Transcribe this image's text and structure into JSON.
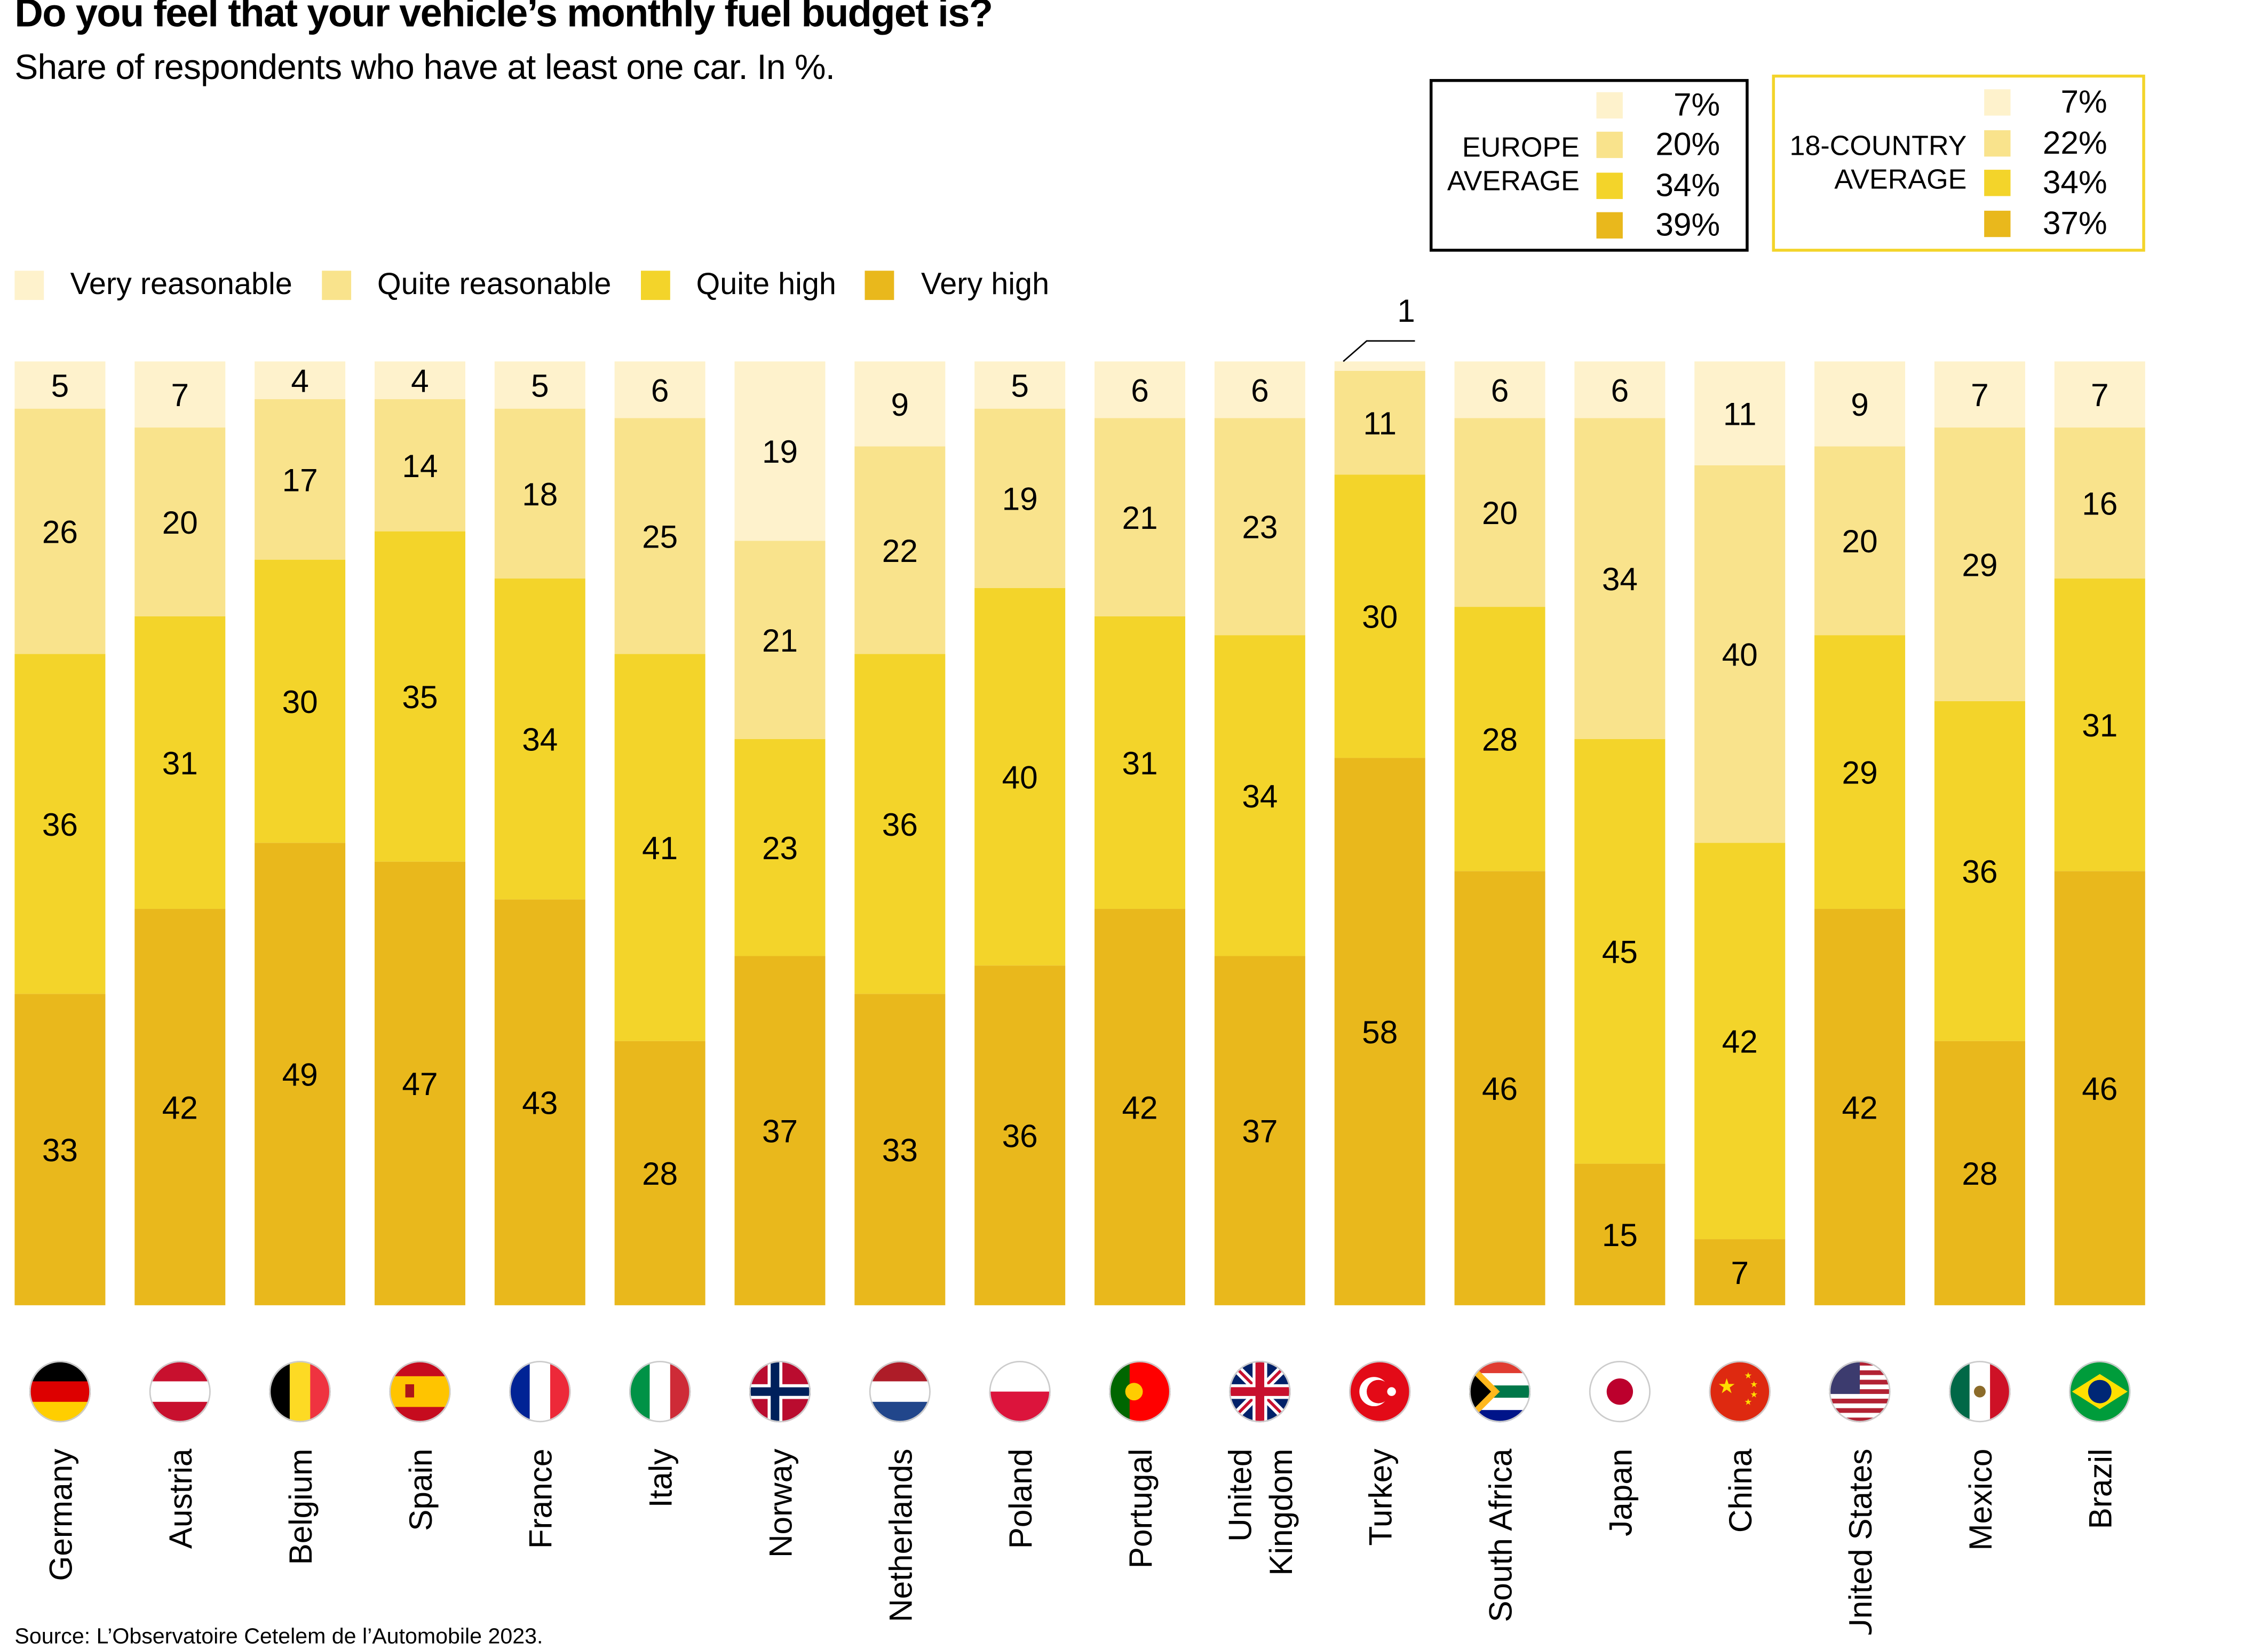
{
  "chart_data": {
    "type": "bar",
    "stacked": true,
    "orientation": "vertical",
    "title": "Do you feel that your vehicle’s monthly fuel budget is?",
    "subtitle": "Share of respondents who have at least one car. In %.",
    "source": "Source: L’Observatoire Cetelem de l’Automobile 2023.",
    "ylim": [
      0,
      100
    ],
    "grid": false,
    "legend_position": "top-left",
    "categories": [
      "Germany",
      "Austria",
      "Belgium",
      "Spain",
      "France",
      "Italy",
      "Norway",
      "Netherlands",
      "Poland",
      "Portugal",
      "United Kingdom",
      "Turkey",
      "South Africa",
      "Japan",
      "China",
      "United States",
      "Mexico",
      "Brazil"
    ],
    "series": [
      {
        "name": "Very reasonable",
        "color": "#FEF2CC",
        "values": [
          5,
          7,
          4,
          4,
          5,
          6,
          19,
          9,
          5,
          6,
          6,
          1,
          6,
          6,
          11,
          9,
          7,
          7
        ]
      },
      {
        "name": "Quite reasonable",
        "color": "#F9E38C",
        "values": [
          26,
          20,
          17,
          14,
          18,
          25,
          21,
          22,
          19,
          21,
          23,
          11,
          20,
          34,
          40,
          20,
          29,
          16
        ]
      },
      {
        "name": "Quite high",
        "color": "#F3D42A",
        "values": [
          36,
          31,
          30,
          35,
          34,
          41,
          23,
          36,
          40,
          31,
          34,
          30,
          28,
          45,
          42,
          29,
          36,
          31
        ]
      },
      {
        "name": "Very high",
        "color": "#E9B81C",
        "values": [
          33,
          42,
          49,
          47,
          43,
          28,
          37,
          33,
          36,
          42,
          37,
          58,
          46,
          15,
          7,
          42,
          28,
          46
        ]
      }
    ],
    "averages": [
      {
        "label_lines": [
          "EUROPE",
          "AVERAGE"
        ],
        "border": "#000000",
        "values": [
          "7%",
          "20%",
          "34%",
          "39%"
        ]
      },
      {
        "label_lines": [
          "18-COUNTRY",
          "AVERAGE"
        ],
        "border": "#F3D42A",
        "values": [
          "7%",
          "22%",
          "34%",
          "37%"
        ]
      }
    ]
  },
  "country_label_lines": [
    [
      "Germany"
    ],
    [
      "Austria"
    ],
    [
      "Belgium"
    ],
    [
      "Spain"
    ],
    [
      "France"
    ],
    [
      "Italy"
    ],
    [
      "Norway"
    ],
    [
      "Netherlands"
    ],
    [
      "Poland"
    ],
    [
      "Portugal"
    ],
    [
      "United",
      "Kingdom"
    ],
    [
      "Turkey"
    ],
    [
      "South Africa"
    ],
    [
      "Japan"
    ],
    [
      "China"
    ],
    [
      "United States"
    ],
    [
      "Mexico"
    ],
    [
      "Brazil"
    ]
  ],
  "flags": [
    {
      "type": "h",
      "colors": [
        "#000000",
        "#DD0000",
        "#FFCE00"
      ]
    },
    {
      "type": "h",
      "colors": [
        "#C8102E",
        "#FFFFFF",
        "#C8102E"
      ]
    },
    {
      "type": "v",
      "colors": [
        "#000000",
        "#FDDA24",
        "#EF3340"
      ]
    },
    {
      "type": "h",
      "colors": [
        "#C60B1E",
        "#FFC400",
        "#FFC400",
        "#C60B1E"
      ]
    },
    {
      "type": "v",
      "colors": [
        "#002395",
        "#FFFFFF",
        "#ED2939"
      ]
    },
    {
      "type": "v",
      "colors": [
        "#009246",
        "#FFFFFF",
        "#CE2B37"
      ]
    },
    {
      "type": "nordic",
      "colors": [
        "#BA0C2F",
        "#FFFFFF",
        "#00205B"
      ]
    },
    {
      "type": "h",
      "colors": [
        "#AE1C28",
        "#FFFFFF",
        "#21468B"
      ]
    },
    {
      "type": "h",
      "colors": [
        "#FFFFFF",
        "#DC143C"
      ]
    },
    {
      "type": "v",
      "colors": [
        "#006600",
        "#FF0000",
        "#FF0000"
      ]
    },
    {
      "type": "uk",
      "colors": [
        "#012169",
        "#FFFFFF",
        "#C8102E"
      ]
    },
    {
      "type": "crescent",
      "colors": [
        "#E30A17",
        "#FFFFFF"
      ]
    },
    {
      "type": "h",
      "colors": [
        "#E03C31",
        "#FFFFFF",
        "#007749",
        "#FFFFFF",
        "#001489"
      ]
    },
    {
      "type": "disc",
      "colors": [
        "#FFFFFF",
        "#BC002D"
      ]
    },
    {
      "type": "star",
      "colors": [
        "#DE2910",
        "#FFDE00"
      ]
    },
    {
      "type": "us",
      "colors": [
        "#B22234",
        "#FFFFFF",
        "#3C3B6E"
      ]
    },
    {
      "type": "v",
      "colors": [
        "#006847",
        "#FFFFFF",
        "#CE1126"
      ]
    },
    {
      "type": "diamond",
      "colors": [
        "#009C3B",
        "#FFDF00",
        "#002776"
      ]
    }
  ]
}
